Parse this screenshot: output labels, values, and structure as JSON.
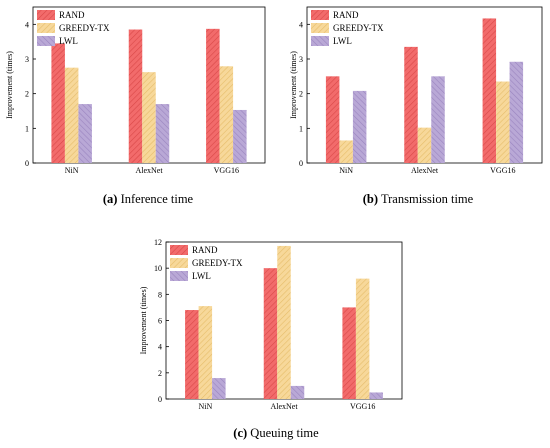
{
  "chart_data": [
    {
      "type": "bar",
      "caption_label": "(a)",
      "caption_text": "Inference time",
      "ylabel": "Improvement (times)",
      "categories": [
        "NiN",
        "AlexNet",
        "VGG16"
      ],
      "ylim": [
        0,
        4.5
      ],
      "yticks": [
        0,
        1,
        2,
        3,
        4
      ],
      "series": [
        {
          "name": "RAND",
          "values": [
            3.45,
            3.85,
            3.87
          ]
        },
        {
          "name": "GREEDY-TX",
          "values": [
            2.75,
            2.62,
            2.79
          ]
        },
        {
          "name": "LWL",
          "values": [
            1.7,
            1.7,
            1.53
          ]
        }
      ],
      "legend_position": "top-left",
      "grid": false
    },
    {
      "type": "bar",
      "caption_label": "(b)",
      "caption_text": "Transmission time",
      "ylabel": "Improvement (times)",
      "categories": [
        "NiN",
        "AlexNet",
        "VGG16"
      ],
      "ylim": [
        0,
        4.5
      ],
      "yticks": [
        0,
        1,
        2,
        3,
        4
      ],
      "series": [
        {
          "name": "RAND",
          "values": [
            2.5,
            3.35,
            4.17
          ]
        },
        {
          "name": "GREEDY-TX",
          "values": [
            0.65,
            1.02,
            2.35
          ]
        },
        {
          "name": "LWL",
          "values": [
            2.08,
            2.5,
            2.92
          ]
        }
      ],
      "legend_position": "top-left",
      "grid": false
    },
    {
      "type": "bar",
      "caption_label": "(c)",
      "caption_text": "Queuing time",
      "ylabel": "Improvement (times)",
      "categories": [
        "NiN",
        "AlexNet",
        "VGG16"
      ],
      "ylim": [
        0,
        12
      ],
      "yticks": [
        0,
        2,
        4,
        6,
        8,
        10,
        12
      ],
      "series": [
        {
          "name": "RAND",
          "values": [
            6.8,
            10.0,
            7.0
          ]
        },
        {
          "name": "GREEDY-TX",
          "values": [
            7.1,
            11.7,
            9.2
          ]
        },
        {
          "name": "LWL",
          "values": [
            1.6,
            1.0,
            0.5
          ]
        }
      ],
      "legend_position": "top-left",
      "grid": false
    }
  ],
  "colors": {
    "RAND": "#f26b6b",
    "GREEDY-TX": "#f7d89a",
    "LWL": "#b9a8d6"
  }
}
